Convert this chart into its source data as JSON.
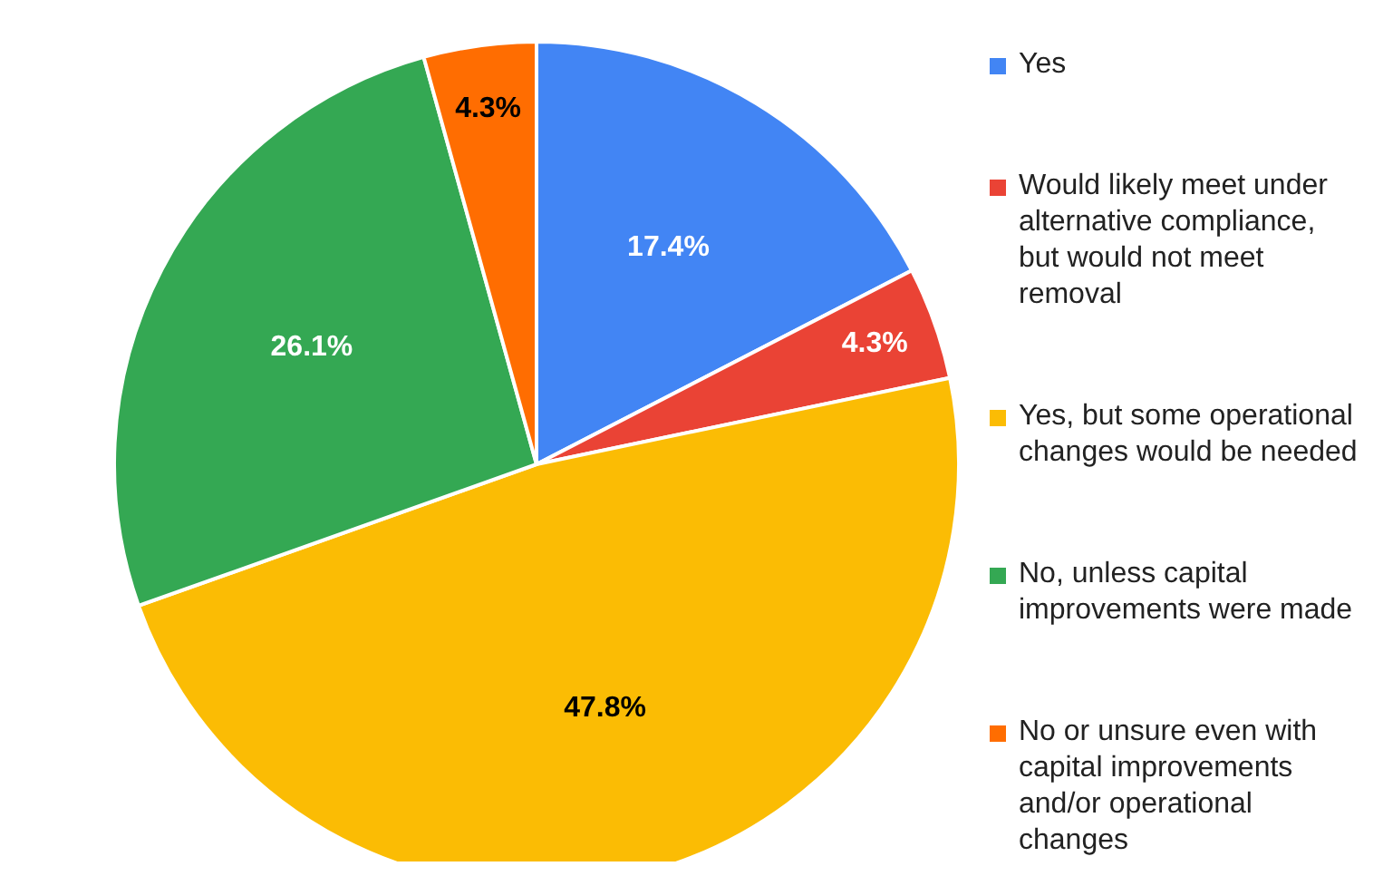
{
  "chart_data": {
    "type": "pie",
    "categories": [
      "Yes",
      "Would likely meet under alternative compliance, but would not meet removal",
      "Yes, but some operational changes would be needed",
      "No, unless capital improvements were made",
      "No or unsure even with capital improvements and/or operational changes"
    ],
    "values": [
      17.4,
      4.3,
      47.8,
      26.1,
      4.3
    ],
    "colors": [
      "#4285f4",
      "#ea4335",
      "#fbbc04",
      "#34a853",
      "#ff6d01"
    ],
    "value_labels": [
      "17.4%",
      "4.3%",
      "47.8%",
      "26.1%",
      "4.3%"
    ],
    "legend": "right"
  }
}
